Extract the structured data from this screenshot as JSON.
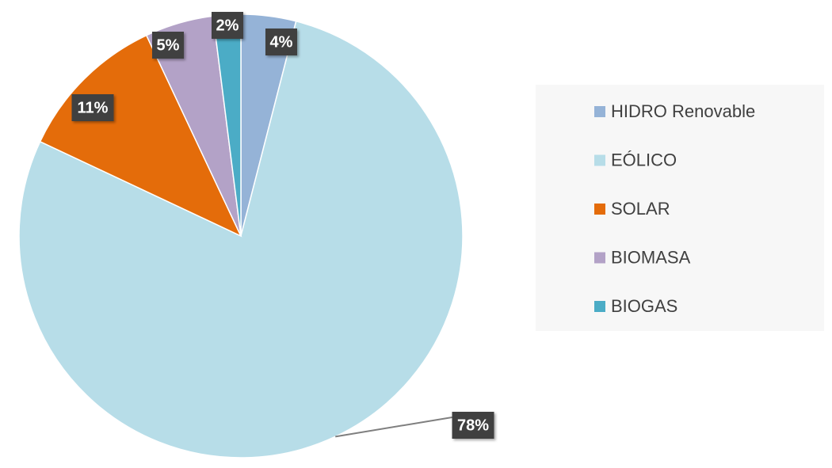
{
  "chart_data": {
    "type": "pie",
    "categories": [
      "HIDRO Renovable",
      "EÓLICO",
      "SOLAR",
      "BIOMASA",
      "BIOGAS"
    ],
    "values": [
      4,
      78,
      11,
      5,
      2
    ],
    "value_labels": [
      "4%",
      "78%",
      "11%",
      "5%",
      "2%"
    ],
    "colors": [
      "#95b3d7",
      "#b7dde8",
      "#e46c0a",
      "#b3a2c7",
      "#4bacc6"
    ],
    "legend": "right"
  }
}
